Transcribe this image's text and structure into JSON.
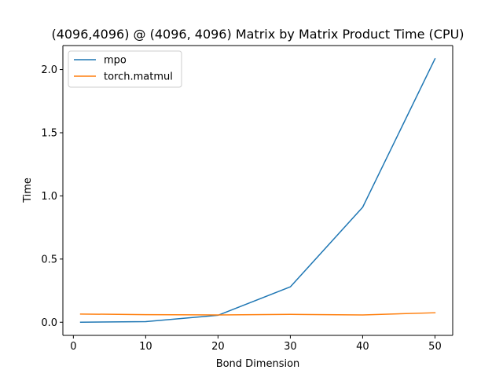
{
  "chart_data": {
    "type": "line",
    "title": "(4096,4096) @ (4096, 4096) Matrix by Matrix Product Time (CPU)",
    "xlabel": "Bond Dimension",
    "ylabel": "Time",
    "x": [
      1,
      10,
      20,
      30,
      40,
      50
    ],
    "series": [
      {
        "name": "mpo",
        "color": "#1f77b4",
        "values": [
          0.0,
          0.005,
          0.055,
          0.28,
          0.91,
          2.085
        ]
      },
      {
        "name": "torch.matmul",
        "color": "#ff7f0e",
        "values": [
          0.065,
          0.06,
          0.058,
          0.062,
          0.058,
          0.075
        ]
      }
    ],
    "xlim": [
      -1.45,
      52.45
    ],
    "ylim": [
      -0.104,
      2.19
    ],
    "xticks": [
      0,
      10,
      20,
      30,
      40,
      50
    ],
    "xtick_labels": [
      "0",
      "10",
      "20",
      "30",
      "40",
      "50"
    ],
    "yticks": [
      0.0,
      0.5,
      1.0,
      1.5,
      2.0
    ],
    "ytick_labels": [
      "0.0",
      "0.5",
      "1.0",
      "1.5",
      "2.0"
    ],
    "grid": false,
    "legend_position": "top-left"
  }
}
